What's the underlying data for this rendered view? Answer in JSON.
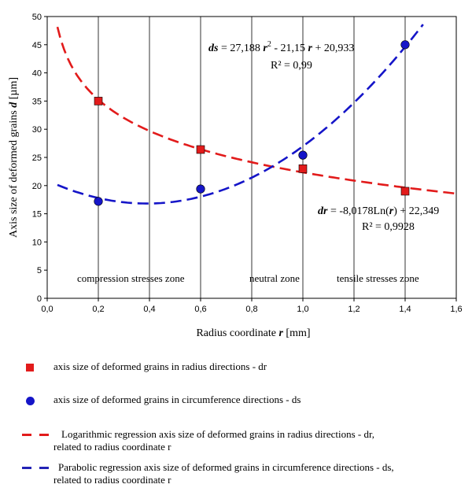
{
  "chart_data": {
    "type": "scatter",
    "xlabel": "Radius coordinate",
    "xlabel_var": "r",
    "xlabel_unit": "[mm]",
    "ylabel": "Axis size of deformed grains",
    "ylabel_var": "d",
    "ylabel_unit": "[µm]",
    "xlim": [
      0,
      1.6
    ],
    "ylim": [
      0,
      50
    ],
    "x_ticks": [
      "0,0",
      "0,2",
      "0,4",
      "0,6",
      "0,8",
      "1,0",
      "1,2",
      "1,4",
      "1,6"
    ],
    "y_ticks": [
      "0",
      "5",
      "10",
      "15",
      "20",
      "25",
      "30",
      "35",
      "40",
      "45",
      "50"
    ],
    "grid": "vertical",
    "series": [
      {
        "key": "dr",
        "marker": "square",
        "color": "#e21b1b",
        "x": [
          0.2,
          0.6,
          1.0,
          1.4
        ],
        "y": [
          35,
          26.4,
          23,
          19
        ]
      },
      {
        "key": "ds",
        "marker": "circle",
        "color": "#1515c8",
        "x": [
          0.2,
          0.6,
          1.0,
          1.4
        ],
        "y": [
          17.2,
          19.4,
          25.4,
          45
        ]
      }
    ],
    "trendlines": [
      {
        "key": "dr",
        "kind": "logarithmic",
        "color": "#e21b1b",
        "a": -8.0178,
        "b": 22.349,
        "x_range": [
          0.04,
          1.6
        ],
        "equation_lhs": "dr",
        "equation_rhs_1": " = -8,0178Ln(",
        "equation_var": "r",
        "equation_rhs_2": ") + 22,349",
        "r2": "R² = 0,9928"
      },
      {
        "key": "ds",
        "kind": "parabolic",
        "color": "#1515c8",
        "a": 27.188,
        "b": -21.15,
        "c": 20.933,
        "x_range": [
          0.04,
          1.47
        ],
        "equation_lhs": "ds",
        "equation_p1": "= 27,188 ",
        "equation_r1": "r",
        "equation_sup": "2",
        "equation_p2": " - 21,15 ",
        "equation_r2": "r",
        "equation_p3": " + 20,933",
        "r2": "R² = 0,99"
      }
    ],
    "annotations": {
      "zone_compression": "compression stresses zone",
      "zone_neutral": "neutral zone",
      "zone_tensile": "tensile stresses zone"
    },
    "legend": {
      "dr_points": "axis size of deformed grains in radius directions - dr",
      "ds_points": "axis size of deformed grains in circumference directions - ds",
      "dr_trend_1": "Logarithmic regression axis size of deformed grains in radius directions - dr,",
      "dr_trend_2": "related to radius coordinate r",
      "ds_trend_1": "Parabolic  regression axis size of deformed grains in circumference  directions - ds,",
      "ds_trend_2": "related to radius coordinate r"
    }
  }
}
